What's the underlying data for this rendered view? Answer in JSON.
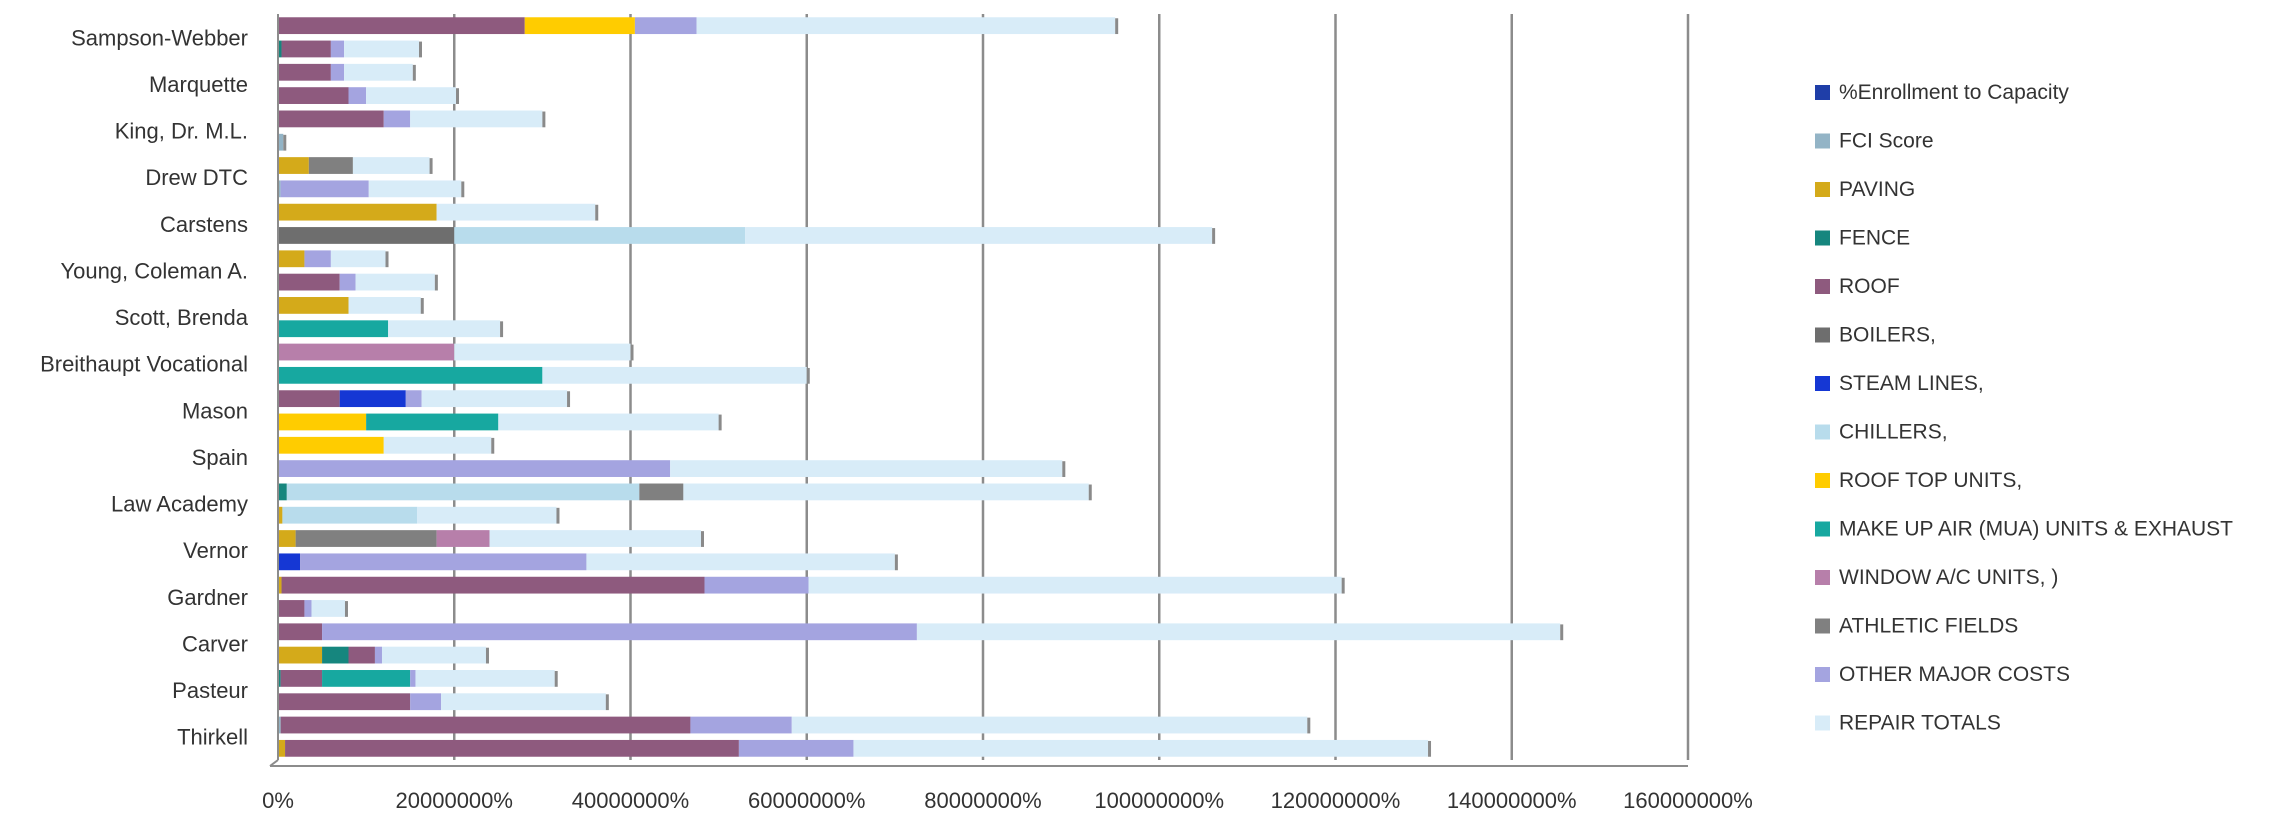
{
  "chart_data": {
    "type": "bar",
    "orientation": "horizontal",
    "stacked": true,
    "title": "",
    "xlabel": "",
    "ylabel": "",
    "xlim": [
      0,
      1600000
    ],
    "grid": true,
    "legend_position": "right",
    "x_tick_values": [
      0,
      200000,
      400000,
      600000,
      800000,
      1000000,
      1200000,
      1400000,
      1600000
    ],
    "x_tick_labels": [
      "0%",
      "20000000%",
      "40000000%",
      "60000000%",
      "80000000%",
      "100000000%",
      "120000000%",
      "140000000%",
      "160000000%"
    ],
    "category_labels": [
      "Sampson-Webber",
      "Marquette",
      "King, Dr. M.L.",
      "Drew DTC",
      "Carstens",
      "Young, Coleman A.",
      "Scott, Brenda",
      "Breithaupt Vocational",
      "Mason",
      "Spain",
      "Law Academy",
      "Vernor",
      "Gardner",
      "Carver",
      "Pasteur",
      "Thirkell"
    ],
    "series": [
      {
        "name": "%Enrollment to Capacity",
        "color": "#1f3ea8"
      },
      {
        "name": "FCI  Score",
        "color": "#93b4c6"
      },
      {
        "name": "PAVING",
        "color": "#d4aa1a"
      },
      {
        "name": "FENCE",
        "color": "#16867e"
      },
      {
        "name": "ROOF",
        "color": "#8e5a7e"
      },
      {
        "name": "BOILERS,",
        "color": "#6e6e6e"
      },
      {
        "name": "STEAM LINES,",
        "color": "#1537d4"
      },
      {
        "name": "CHILLERS,",
        "color": "#b8dcec"
      },
      {
        "name": "ROOF TOP UNITS,",
        "color": "#ffcc00"
      },
      {
        "name": "MAKE UP AIR (MUA) UNITS & EXHAUST",
        "color": "#17a8a0"
      },
      {
        "name": "WINDOW A/C UNITS, )",
        "color": "#b77faa"
      },
      {
        "name": "ATHLETIC FIELDS",
        "color": "#808080"
      },
      {
        "name": "OTHER MAJOR COSTS",
        "color": "#a4a4e0"
      },
      {
        "name": "REPAIR TOTALS",
        "color": "#d8ecf8"
      }
    ],
    "rows": [
      {
        "segments": [
          [
            "ROOF",
            280000
          ],
          [
            "ROOF TOP UNITS,",
            125000
          ],
          [
            "OTHER MAJOR COSTS",
            70000
          ],
          [
            "REPAIR TOTALS",
            475000
          ]
        ]
      },
      {
        "segments": [
          [
            "FENCE",
            4000
          ],
          [
            "ROOF",
            56000
          ],
          [
            "OTHER MAJOR COSTS",
            15000
          ],
          [
            "REPAIR TOTALS",
            85000
          ]
        ]
      },
      {
        "segments": [
          [
            "ROOF",
            60000
          ],
          [
            "OTHER MAJOR COSTS",
            15000
          ],
          [
            "REPAIR TOTALS",
            78000
          ]
        ]
      },
      {
        "segments": [
          [
            "ROOF",
            80000
          ],
          [
            "OTHER MAJOR COSTS",
            20000
          ],
          [
            "REPAIR TOTALS",
            102000
          ]
        ]
      },
      {
        "segments": [
          [
            "ROOF",
            120000
          ],
          [
            "OTHER MAJOR COSTS",
            30000
          ],
          [
            "REPAIR TOTALS",
            150000
          ]
        ]
      },
      {
        "segments": [
          [
            "FCI  Score",
            6000
          ]
        ]
      },
      {
        "segments": [
          [
            "PAVING",
            35000
          ],
          [
            "ATHLETIC FIELDS",
            50000
          ],
          [
            "REPAIR TOTALS",
            87000
          ]
        ]
      },
      {
        "segments": [
          [
            "FCI  Score",
            3000
          ],
          [
            "OTHER MAJOR COSTS",
            100000
          ],
          [
            "REPAIR TOTALS",
            105000
          ]
        ]
      },
      {
        "segments": [
          [
            "PAVING",
            180000
          ],
          [
            "REPAIR TOTALS",
            180000
          ]
        ]
      },
      {
        "segments": [
          [
            "BOILERS,",
            200000
          ],
          [
            "CHILLERS,",
            330000
          ],
          [
            "REPAIR TOTALS",
            530000
          ]
        ]
      },
      {
        "segments": [
          [
            "PAVING",
            30000
          ],
          [
            "OTHER MAJOR COSTS",
            30000
          ],
          [
            "REPAIR TOTALS",
            62000
          ]
        ]
      },
      {
        "segments": [
          [
            "ROOF",
            70000
          ],
          [
            "OTHER MAJOR COSTS",
            18000
          ],
          [
            "REPAIR TOTALS",
            90000
          ]
        ]
      },
      {
        "segments": [
          [
            "PAVING",
            80000
          ],
          [
            "REPAIR TOTALS",
            82000
          ]
        ]
      },
      {
        "segments": [
          [
            "MAKE UP AIR (MUA) UNITS & EXHAUST",
            125000
          ],
          [
            "REPAIR TOTALS",
            127000
          ]
        ]
      },
      {
        "segments": [
          [
            "WINDOW A/C UNITS, )",
            200000
          ],
          [
            "REPAIR TOTALS",
            200000
          ]
        ]
      },
      {
        "segments": [
          [
            "MAKE UP AIR (MUA) UNITS & EXHAUST",
            300000
          ],
          [
            "REPAIR TOTALS",
            300000
          ]
        ]
      },
      {
        "segments": [
          [
            "ROOF",
            70000
          ],
          [
            "STEAM LINES,",
            75000
          ],
          [
            "OTHER MAJOR COSTS",
            18000
          ],
          [
            "REPAIR TOTALS",
            165000
          ]
        ]
      },
      {
        "segments": [
          [
            "ROOF TOP UNITS,",
            100000
          ],
          [
            "MAKE UP AIR (MUA) UNITS & EXHAUST",
            150000
          ],
          [
            "REPAIR TOTALS",
            250000
          ]
        ]
      },
      {
        "segments": [
          [
            "ROOF TOP UNITS,",
            120000
          ],
          [
            "REPAIR TOTALS",
            122000
          ]
        ]
      },
      {
        "segments": [
          [
            "OTHER MAJOR COSTS",
            445000
          ],
          [
            "REPAIR TOTALS",
            445000
          ]
        ]
      },
      {
        "segments": [
          [
            "FENCE",
            10000
          ],
          [
            "CHILLERS,",
            400000
          ],
          [
            "ATHLETIC FIELDS",
            50000
          ],
          [
            "REPAIR TOTALS",
            460000
          ]
        ]
      },
      {
        "segments": [
          [
            "PAVING",
            5000
          ],
          [
            "CHILLERS,",
            153000
          ],
          [
            "REPAIR TOTALS",
            158000
          ]
        ]
      },
      {
        "segments": [
          [
            "PAVING",
            20000
          ],
          [
            "ATHLETIC FIELDS",
            160000
          ],
          [
            "WINDOW A/C UNITS, )",
            60000
          ],
          [
            "REPAIR TOTALS",
            240000
          ]
        ]
      },
      {
        "segments": [
          [
            "STEAM LINES,",
            25000
          ],
          [
            "OTHER MAJOR COSTS",
            325000
          ],
          [
            "REPAIR TOTALS",
            350000
          ]
        ]
      },
      {
        "segments": [
          [
            "PAVING",
            4000
          ],
          [
            "ROOF",
            480000
          ],
          [
            "OTHER MAJOR COSTS",
            118000
          ],
          [
            "REPAIR TOTALS",
            605000
          ]
        ]
      },
      {
        "segments": [
          [
            "ROOF",
            30000
          ],
          [
            "OTHER MAJOR COSTS",
            8000
          ],
          [
            "REPAIR TOTALS",
            38000
          ]
        ]
      },
      {
        "segments": [
          [
            "ROOF",
            50000
          ],
          [
            "OTHER MAJOR COSTS",
            675000
          ],
          [
            "REPAIR TOTALS",
            730000
          ]
        ]
      },
      {
        "segments": [
          [
            "PAVING",
            50000
          ],
          [
            "FENCE",
            30000
          ],
          [
            "ROOF",
            30000
          ],
          [
            "OTHER MAJOR COSTS",
            8000
          ],
          [
            "REPAIR TOTALS",
            118000
          ]
        ]
      },
      {
        "segments": [
          [
            "FENCE",
            3000
          ],
          [
            "ROOF",
            47000
          ],
          [
            "MAKE UP AIR (MUA) UNITS & EXHAUST",
            100000
          ],
          [
            "OTHER MAJOR COSTS",
            6000
          ],
          [
            "REPAIR TOTALS",
            158000
          ]
        ]
      },
      {
        "segments": [
          [
            "ROOF",
            150000
          ],
          [
            "OTHER MAJOR COSTS",
            35000
          ],
          [
            "REPAIR TOTALS",
            187000
          ]
        ]
      },
      {
        "segments": [
          [
            "FCI  Score",
            3000
          ],
          [
            "ROOF",
            465000
          ],
          [
            "OTHER MAJOR COSTS",
            115000
          ],
          [
            "REPAIR TOTALS",
            585000
          ]
        ]
      },
      {
        "segments": [
          [
            "PAVING",
            8000
          ],
          [
            "ROOF",
            515000
          ],
          [
            "OTHER MAJOR COSTS",
            130000
          ],
          [
            "REPAIR TOTALS",
            652000
          ]
        ]
      }
    ]
  }
}
